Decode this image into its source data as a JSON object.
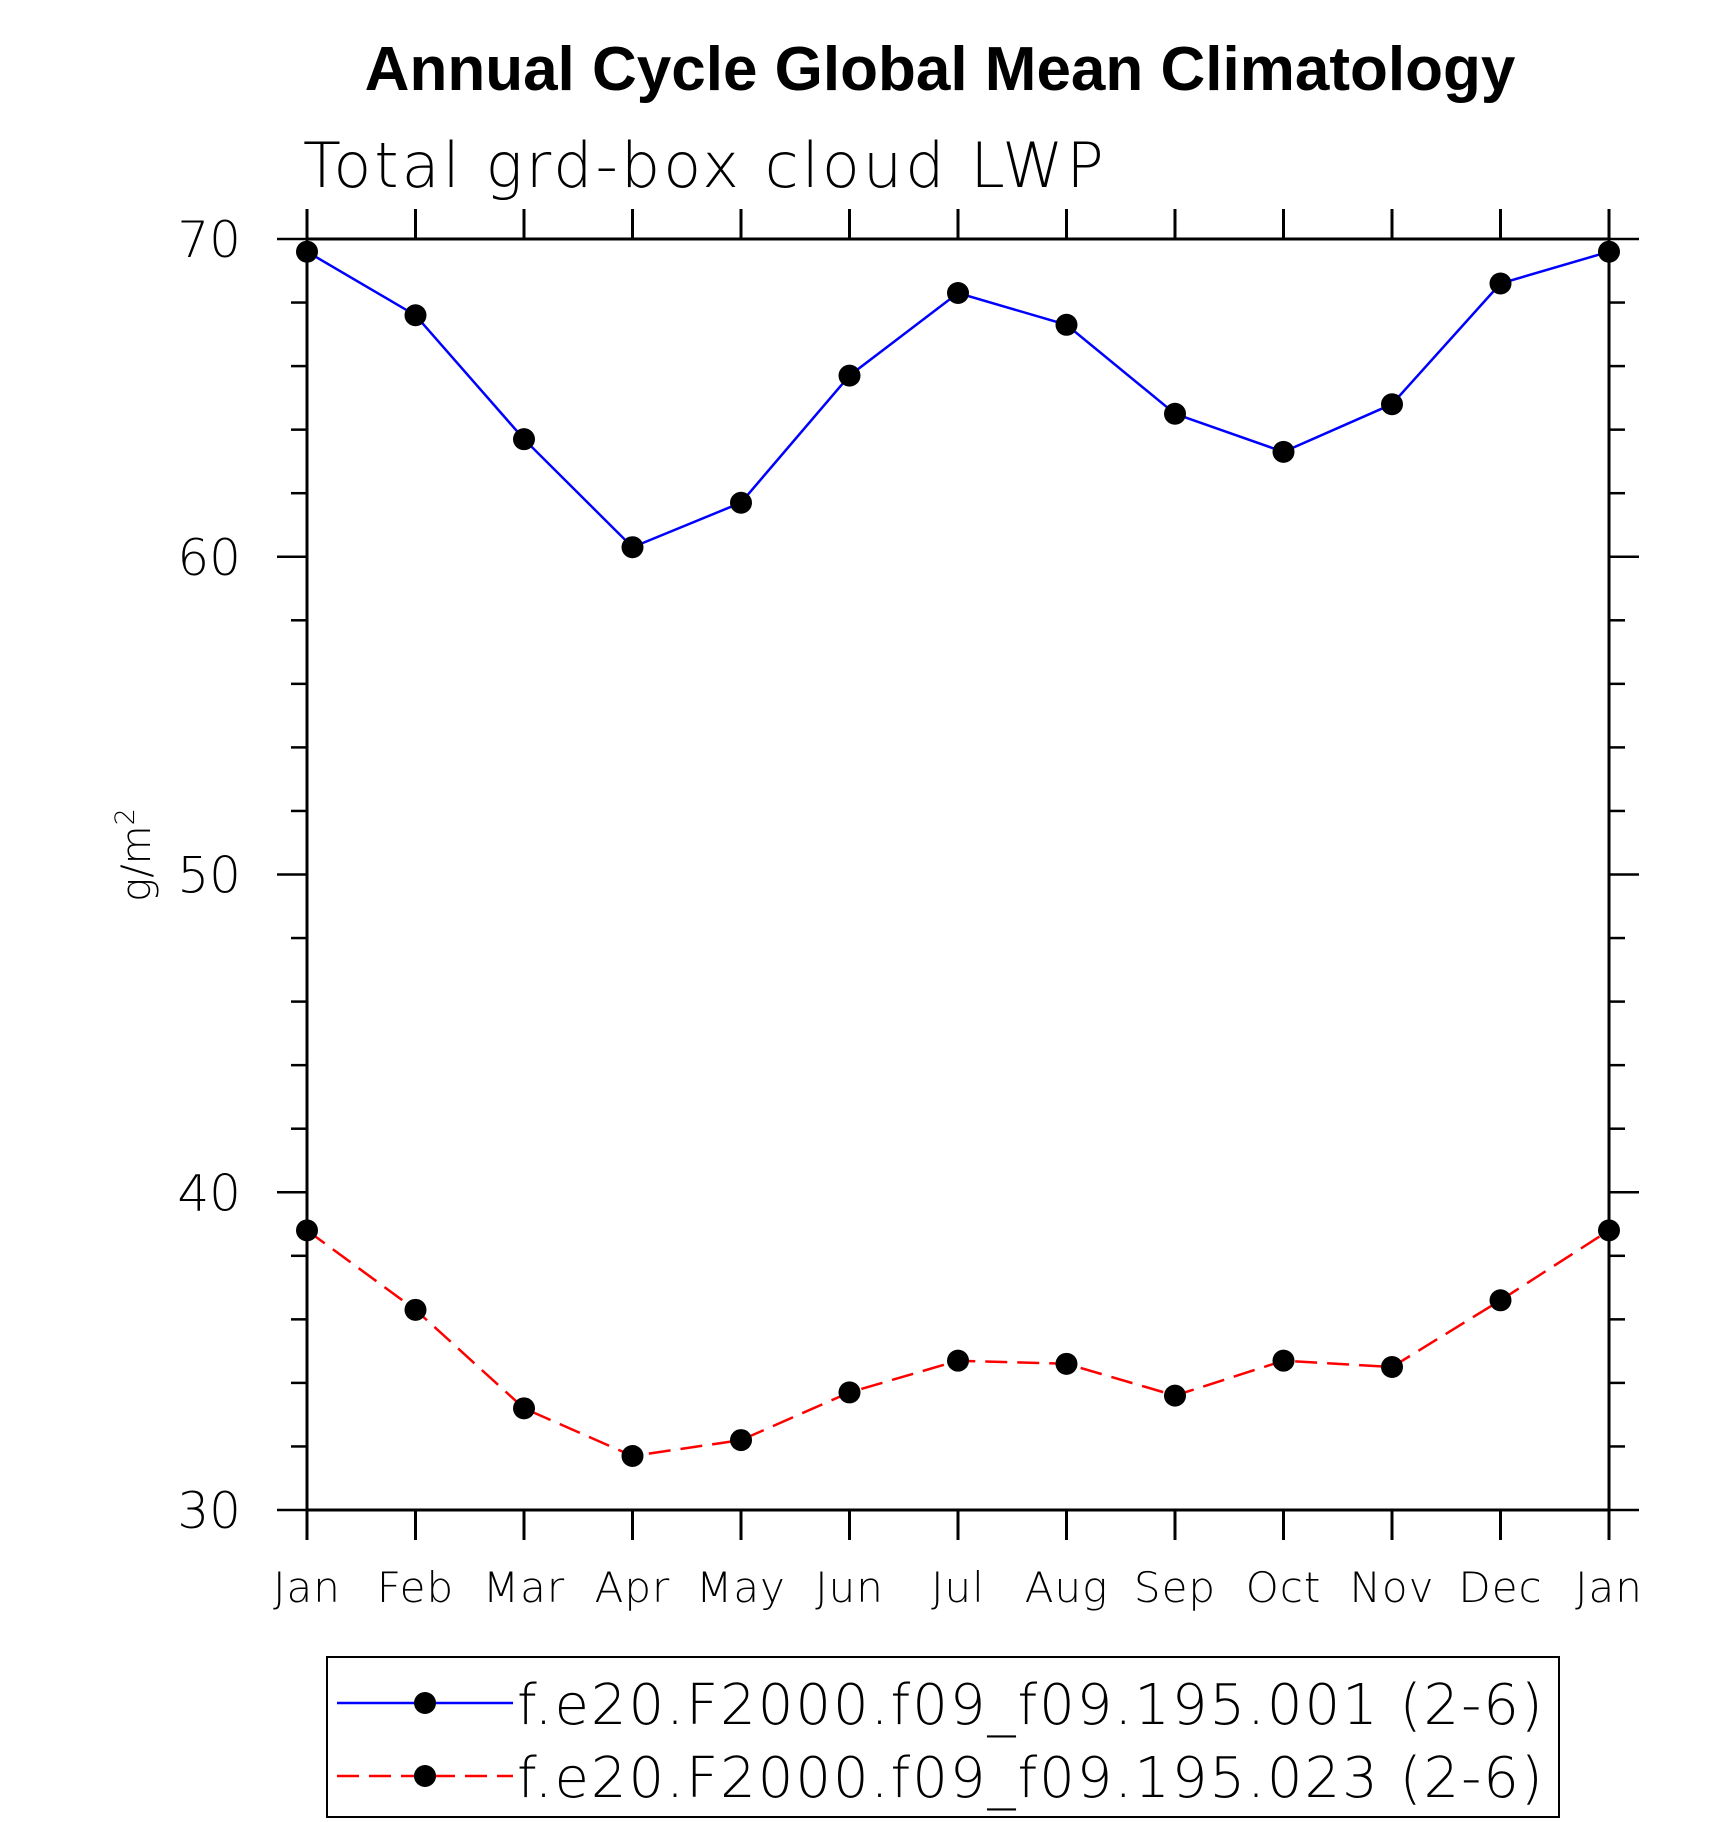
{
  "chart_data": {
    "type": "line",
    "title": "Annual Cycle Global Mean Climatology",
    "subtitle": "Total grd-box cloud LWP",
    "xlabel": "",
    "ylabel": "g/m",
    "ylabel_superscript": "2",
    "ylim": [
      30,
      70
    ],
    "yticks": [
      30,
      40,
      50,
      60,
      70
    ],
    "grid": false,
    "legend_position": "bottom-center",
    "categories": [
      "Jan",
      "Feb",
      "Mar",
      "Apr",
      "May",
      "Jun",
      "Jul",
      "Aug",
      "Sep",
      "Oct",
      "Nov",
      "Dec",
      "Jan"
    ],
    "series": [
      {
        "name": "f.e20.F2000.f09_f09.195.001 (2-6)",
        "color": "#0000ff",
        "style": "solid",
        "values": [
          69.6,
          67.6,
          63.7,
          60.3,
          61.7,
          65.7,
          68.3,
          67.3,
          64.5,
          63.3,
          64.8,
          68.6,
          69.6
        ]
      },
      {
        "name": "f.e20.F2000.f09_f09.195.023 (2-6)",
        "color": "#ff0000",
        "style": "dashed",
        "values": [
          38.8,
          36.3,
          33.2,
          31.7,
          32.2,
          33.7,
          34.7,
          34.6,
          33.6,
          34.7,
          34.5,
          36.6,
          38.8
        ]
      }
    ]
  }
}
